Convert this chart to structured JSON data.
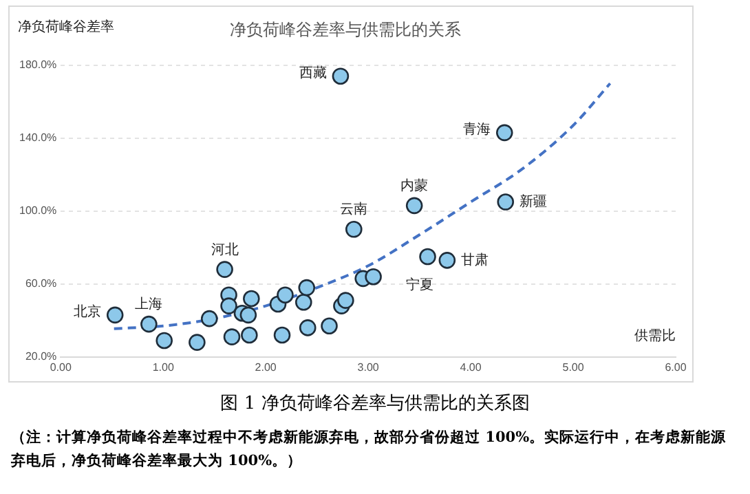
{
  "chart_data": {
    "type": "scatter",
    "title": "净负荷峰谷差率与供需比的关系",
    "xlabel": "供需比",
    "ylabel": "净负荷峰谷差率",
    "xlim": [
      0,
      6
    ],
    "xticks": [
      {
        "value": 0,
        "label": "0.00"
      },
      {
        "value": 1,
        "label": "1.00"
      },
      {
        "value": 2,
        "label": "2.00"
      },
      {
        "value": 3,
        "label": "3.00"
      },
      {
        "value": 4,
        "label": "4.00"
      },
      {
        "value": 5,
        "label": "5.00"
      },
      {
        "value": 6,
        "label": "6.00"
      }
    ],
    "ylim": [
      20,
      180
    ],
    "yticks": [
      {
        "value": 20,
        "label": "20.0%"
      },
      {
        "value": 60,
        "label": "60.0%"
      },
      {
        "value": 100,
        "label": "100.0%"
      },
      {
        "value": 140,
        "label": "140.0%"
      },
      {
        "value": 180,
        "label": "180.0%"
      }
    ],
    "grid": "y",
    "legend": false,
    "series": [
      {
        "color": "#8dc8ea",
        "marker": "circle",
        "x": [
          0.53,
          0.86,
          1.01,
          1.33,
          1.45,
          1.6,
          1.64,
          1.64,
          1.67,
          1.77,
          1.83,
          1.86,
          1.84,
          2.12,
          2.16,
          2.19,
          2.37,
          2.4,
          2.41,
          2.62,
          2.74,
          2.78,
          2.86,
          2.95,
          3.05,
          3.45,
          3.58,
          3.77,
          4.34,
          2.73,
          4.33
        ],
        "values": [
          43,
          38,
          29,
          28,
          41,
          68,
          54,
          48,
          31,
          44,
          43,
          52,
          32,
          49,
          32,
          54,
          50,
          58,
          36,
          37,
          48,
          51,
          90,
          63,
          64,
          103,
          75,
          73,
          105,
          174,
          143
        ]
      },
      {
        "type": "line",
        "color": "#4472c4",
        "marker": "none",
        "line_style": "dashed",
        "x": [
          0.52,
          1.0,
          1.5,
          2.0,
          2.5,
          3.0,
          3.5,
          4.0,
          4.5,
          5.0,
          5.36
        ],
        "values": [
          35.5,
          37,
          41,
          48,
          58,
          70,
          87,
          105,
          123,
          147,
          170
        ]
      }
    ],
    "annotations": [
      {
        "text": "北京",
        "x": 0.53,
        "y": 43
      },
      {
        "text": "上海",
        "x": 0.86,
        "y": 38
      },
      {
        "text": "河北",
        "x": 1.6,
        "y": 68
      },
      {
        "text": "云南",
        "x": 2.86,
        "y": 90
      },
      {
        "text": "内蒙",
        "x": 3.45,
        "y": 103
      },
      {
        "text": "宁夏",
        "x": 3.58,
        "y": 75
      },
      {
        "text": "甘肃",
        "x": 3.77,
        "y": 73
      },
      {
        "text": "新疆",
        "x": 4.34,
        "y": 105
      },
      {
        "text": "西藏",
        "x": 2.73,
        "y": 174
      },
      {
        "text": "青海",
        "x": 4.33,
        "y": 143
      },
      "图 1 净负荷峰谷差率与供需比的关系图",
      "（注：计算净负荷峰谷差率过程中不考虑新能源弃电，故部分省份超过 100%。实际运行中，在考虑新能源弃电后，净负荷峰谷差率最大为 100%。）"
    ]
  }
}
